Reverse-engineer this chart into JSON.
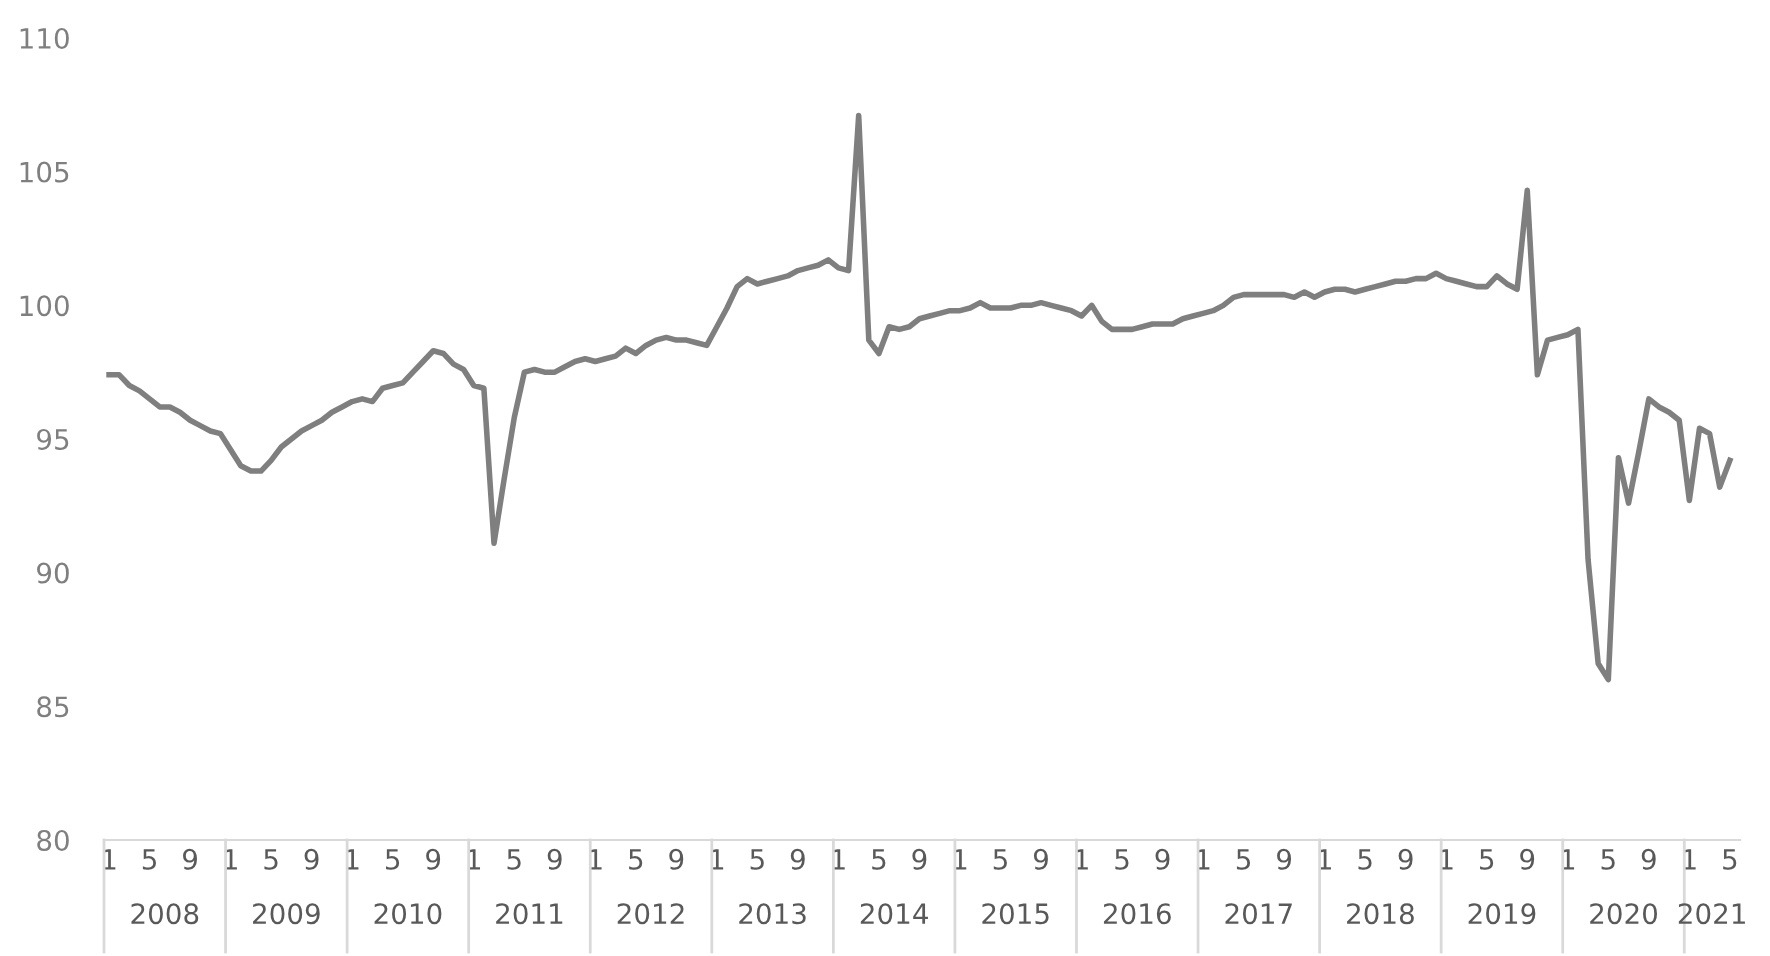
{
  "chart_data": {
    "type": "line",
    "categories": [
      "1",
      null,
      null,
      null,
      "5",
      null,
      null,
      null,
      "9",
      null,
      null,
      null,
      "1",
      null,
      null,
      null,
      "5",
      null,
      null,
      null,
      "9",
      null,
      null,
      null,
      "1",
      null,
      null,
      null,
      "5",
      null,
      null,
      null,
      "9",
      null,
      null,
      null,
      "1",
      null,
      null,
      null,
      "5",
      null,
      null,
      null,
      "9",
      null,
      null,
      null,
      "1",
      null,
      null,
      null,
      "5",
      null,
      null,
      null,
      "9",
      null,
      null,
      null,
      "1",
      null,
      null,
      null,
      "5",
      null,
      null,
      null,
      "9",
      null,
      null,
      null,
      "1",
      null,
      null,
      null,
      "5",
      null,
      null,
      null,
      "9",
      null,
      null,
      null,
      "1",
      null,
      null,
      null,
      "5",
      null,
      null,
      null,
      "9",
      null,
      null,
      null,
      "1",
      null,
      null,
      null,
      "5",
      null,
      null,
      null,
      "9",
      null,
      null,
      null,
      "1",
      null,
      null,
      null,
      "5",
      null,
      null,
      null,
      "9",
      null,
      null,
      null,
      "1",
      null,
      null,
      null,
      "5",
      null,
      null,
      null,
      "9",
      null,
      null,
      null,
      "1",
      null,
      null,
      null,
      "5",
      null,
      null,
      null,
      "9",
      null,
      null,
      null,
      "1",
      null,
      null,
      null,
      "5",
      null,
      null,
      null,
      "9",
      null,
      null,
      null,
      "1",
      null,
      null,
      null,
      "5"
    ],
    "series": [
      {
        "color": "#7f7f7f",
        "values": [
          97.4,
          97.4,
          97.0,
          96.8,
          96.5,
          96.2,
          96.2,
          96.0,
          95.7,
          95.5,
          95.3,
          95.2,
          94.6,
          94.0,
          93.8,
          93.8,
          94.2,
          94.7,
          95.0,
          95.3,
          95.5,
          95.7,
          96.0,
          96.2,
          96.4,
          96.5,
          96.4,
          96.9,
          97.0,
          97.1,
          97.5,
          97.9,
          98.3,
          98.2,
          97.8,
          97.6,
          97.0,
          96.9,
          91.1,
          93.5,
          95.8,
          97.5,
          97.6,
          97.5,
          97.5,
          97.7,
          97.9,
          98.0,
          97.9,
          98.0,
          98.1,
          98.4,
          98.2,
          98.5,
          98.7,
          98.8,
          98.7,
          98.7,
          98.6,
          98.5,
          99.2,
          99.9,
          100.7,
          101.0,
          100.8,
          100.9,
          101.0,
          101.1,
          101.3,
          101.4,
          101.5,
          101.7,
          101.4,
          101.3,
          107.1,
          98.7,
          98.2,
          99.2,
          99.1,
          99.2,
          99.5,
          99.6,
          99.7,
          99.8,
          99.8,
          99.9,
          100.1,
          99.9,
          99.9,
          99.9,
          100.0,
          100.0,
          100.1,
          100.0,
          99.9,
          99.8,
          99.6,
          100.0,
          99.4,
          99.1,
          99.1,
          99.1,
          99.2,
          99.3,
          99.3,
          99.3,
          99.5,
          99.6,
          99.7,
          99.8,
          100.0,
          100.3,
          100.4,
          100.4,
          100.4,
          100.4,
          100.4,
          100.3,
          100.5,
          100.3,
          100.5,
          100.6,
          100.6,
          100.5,
          100.6,
          100.7,
          100.8,
          100.9,
          100.9,
          101.0,
          101.0,
          101.2,
          101.0,
          100.9,
          100.8,
          100.7,
          100.7,
          101.1,
          100.8,
          100.6,
          104.3,
          97.4,
          98.7,
          98.8,
          98.9,
          99.1,
          90.5,
          86.6,
          86.0,
          94.3,
          92.6,
          94.5,
          96.5,
          96.2,
          96.0,
          95.7,
          92.7,
          95.4,
          95.2,
          93.2,
          94.2
        ]
      }
    ],
    "ylim": [
      80,
      110
    ],
    "yticks": [
      80,
      85,
      90,
      95,
      100,
      105,
      110
    ],
    "annotations": [
      "2008",
      "2009",
      "2010",
      "2011",
      "2012",
      "2013",
      "2014",
      "2015",
      "2016",
      "2017",
      "2018",
      "2019",
      "2020",
      "2021"
    ],
    "grid": false,
    "legend": false,
    "marker": "none",
    "line_style": "solid"
  }
}
